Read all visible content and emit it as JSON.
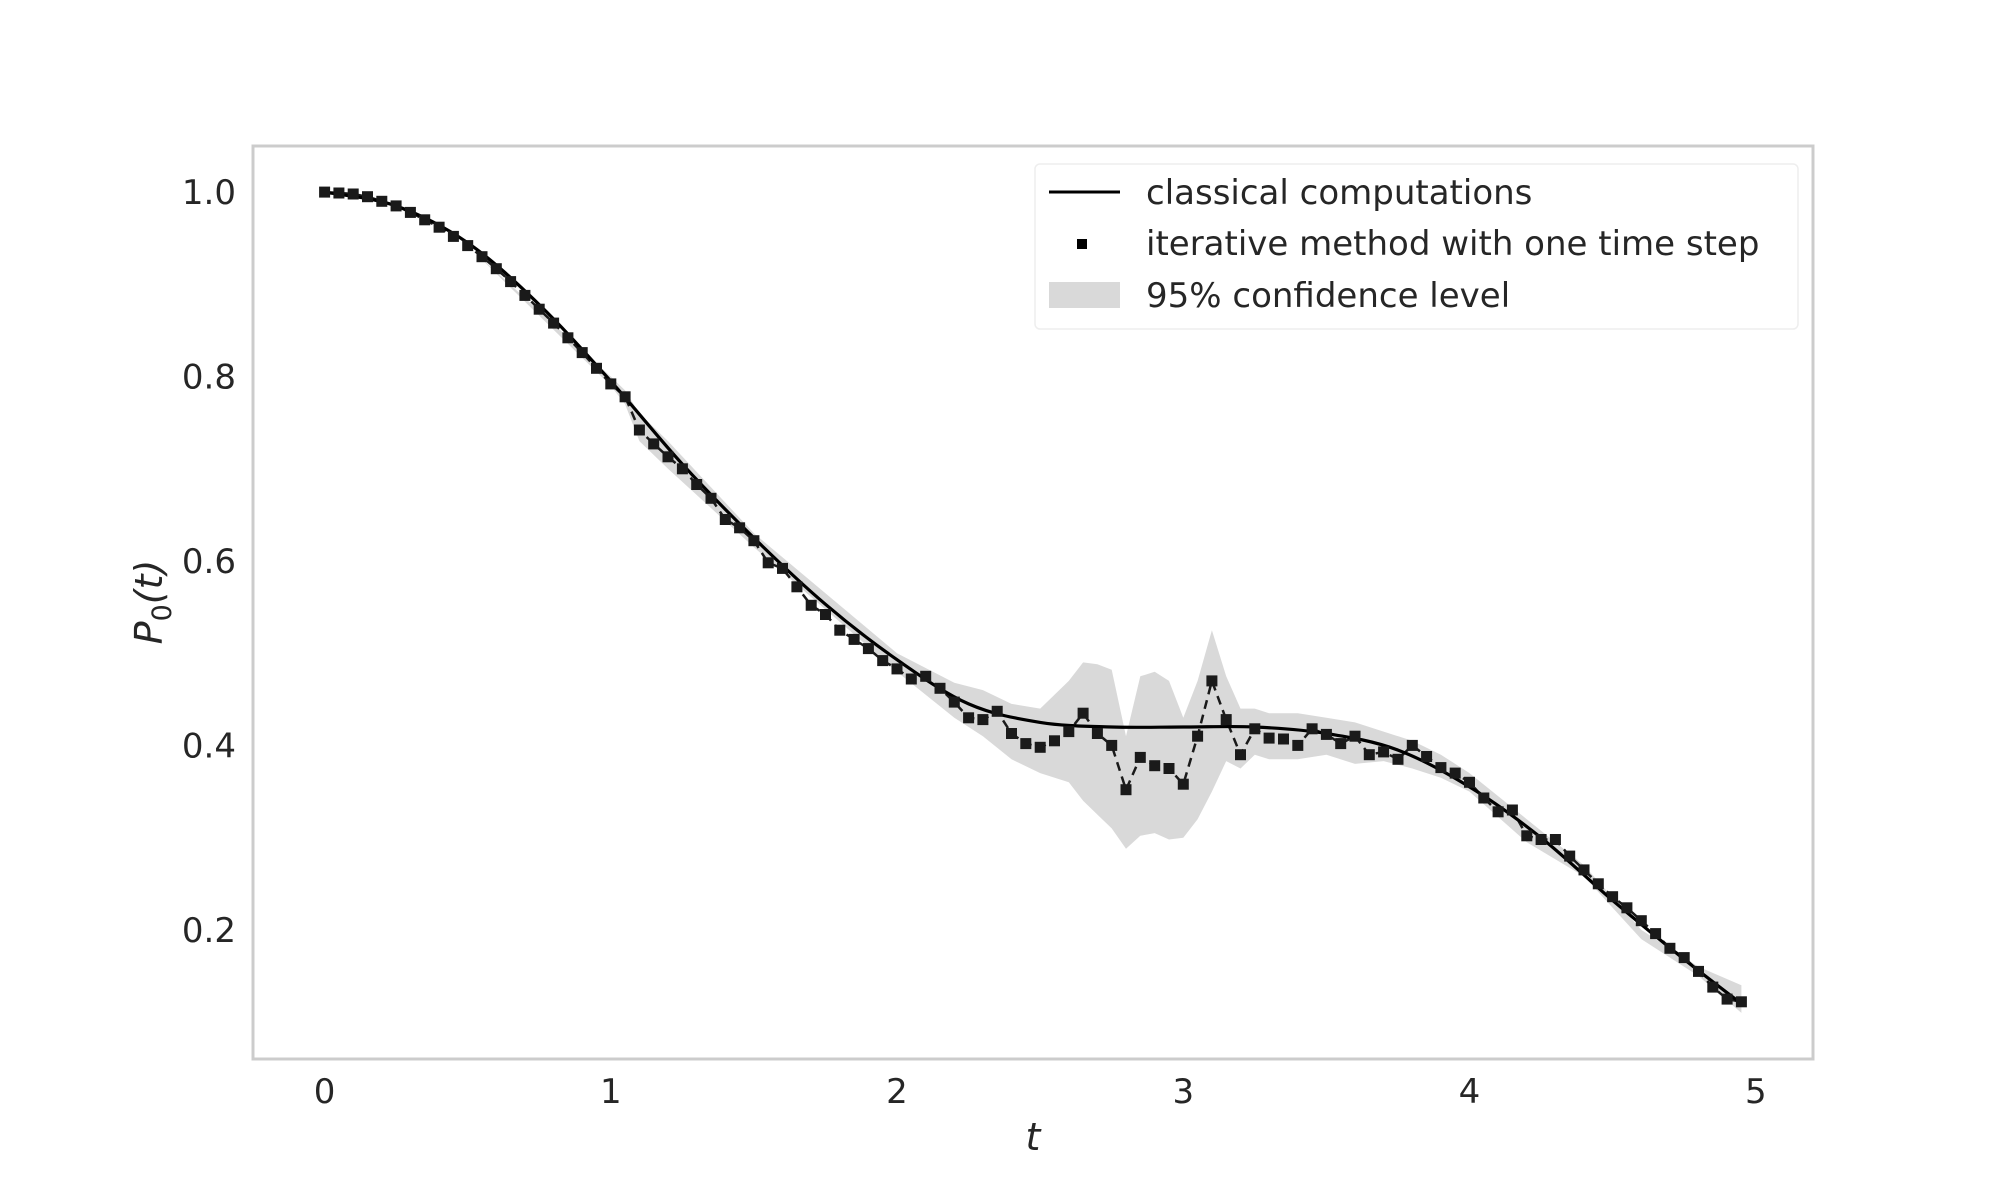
{
  "chart_data": {
    "type": "line",
    "title": "",
    "xlabel": "t",
    "ylabel_main": "P",
    "ylabel_sub": "0",
    "ylabel_tail": "(t)",
    "xlim": [
      -0.25,
      5.2
    ],
    "ylim": [
      0.06,
      1.05
    ],
    "xticks": [
      0,
      1,
      2,
      3,
      4,
      5
    ],
    "xtick_labels": [
      "0",
      "1",
      "2",
      "3",
      "4",
      "5"
    ],
    "yticks": [
      0.2,
      0.4,
      0.6,
      0.8,
      1.0
    ],
    "ytick_labels": [
      "0.2",
      "0.4",
      "0.6",
      "0.8",
      "1.0"
    ],
    "grid": false,
    "legend_position": "top-right",
    "colors": {
      "line": "#000000",
      "marker": "#1a1a1a",
      "band": "#d9d9d9",
      "frame": "#cccccc",
      "text": "#262626"
    },
    "series": [
      {
        "name": "classical computations",
        "kind": "line",
        "x": [
          0,
          0.25,
          0.5,
          0.75,
          1.0,
          1.25,
          1.5,
          1.75,
          2.0,
          2.25,
          2.5,
          2.75,
          3.0,
          3.25,
          3.5,
          3.75,
          4.0,
          4.25,
          4.5,
          4.75,
          4.95
        ],
        "y": [
          1.0,
          0.985,
          0.945,
          0.878,
          0.795,
          0.705,
          0.625,
          0.553,
          0.493,
          0.445,
          0.425,
          0.42,
          0.42,
          0.42,
          0.413,
          0.395,
          0.355,
          0.3,
          0.232,
          0.168,
          0.12
        ]
      },
      {
        "name": "iterative method with one time step",
        "kind": "markers",
        "x": [
          0.0,
          0.05,
          0.1,
          0.15,
          0.2,
          0.25,
          0.3,
          0.35,
          0.4,
          0.45,
          0.5,
          0.55,
          0.6,
          0.65,
          0.7,
          0.75,
          0.8,
          0.85,
          0.9,
          0.95,
          1.0,
          1.05,
          1.1,
          1.15,
          1.2,
          1.25,
          1.3,
          1.35,
          1.4,
          1.45,
          1.5,
          1.55,
          1.6,
          1.65,
          1.7,
          1.75,
          1.8,
          1.85,
          1.9,
          1.95,
          2.0,
          2.05,
          2.1,
          2.15,
          2.2,
          2.25,
          2.3,
          2.35,
          2.4,
          2.45,
          2.5,
          2.55,
          2.6,
          2.65,
          2.7,
          2.75,
          2.8,
          2.85,
          2.9,
          2.95,
          3.0,
          3.05,
          3.1,
          3.15,
          3.2,
          3.25,
          3.3,
          3.35,
          3.4,
          3.45,
          3.5,
          3.55,
          3.6,
          3.65,
          3.7,
          3.75,
          3.8,
          3.85,
          3.9,
          3.95,
          4.0,
          4.05,
          4.1,
          4.15,
          4.2,
          4.25,
          4.3,
          4.35,
          4.4,
          4.45,
          4.5,
          4.55,
          4.6,
          4.65,
          4.7,
          4.75,
          4.8,
          4.85,
          4.9,
          4.95
        ],
        "y": [
          1.0,
          0.999,
          0.998,
          0.995,
          0.99,
          0.985,
          0.978,
          0.97,
          0.962,
          0.952,
          0.942,
          0.93,
          0.917,
          0.903,
          0.888,
          0.873,
          0.858,
          0.842,
          0.826,
          0.809,
          0.792,
          0.778,
          0.742,
          0.727,
          0.713,
          0.7,
          0.683,
          0.668,
          0.645,
          0.636,
          0.622,
          0.598,
          0.592,
          0.572,
          0.552,
          0.542,
          0.525,
          0.515,
          0.505,
          0.492,
          0.483,
          0.472,
          0.475,
          0.462,
          0.447,
          0.43,
          0.428,
          0.437,
          0.413,
          0.402,
          0.398,
          0.405,
          0.415,
          0.435,
          0.413,
          0.4,
          0.352,
          0.387,
          0.378,
          0.375,
          0.358,
          0.41,
          0.47,
          0.428,
          0.39,
          0.418,
          0.408,
          0.407,
          0.4,
          0.418,
          0.412,
          0.402,
          0.41,
          0.39,
          0.393,
          0.385,
          0.4,
          0.388,
          0.376,
          0.37,
          0.36,
          0.343,
          0.328,
          0.33,
          0.302,
          0.298,
          0.298,
          0.28,
          0.265,
          0.25,
          0.236,
          0.224,
          0.21,
          0.196,
          0.18,
          0.17,
          0.155,
          0.138,
          0.125,
          0.122
        ]
      },
      {
        "name": "95% confidence level",
        "kind": "band",
        "x": [
          0.0,
          0.5,
          1.0,
          1.05,
          1.1,
          1.2,
          1.5,
          2.0,
          2.2,
          2.3,
          2.4,
          2.5,
          2.6,
          2.65,
          2.7,
          2.75,
          2.8,
          2.85,
          2.9,
          2.95,
          3.0,
          3.05,
          3.1,
          3.15,
          3.2,
          3.25,
          3.3,
          3.4,
          3.5,
          3.6,
          3.7,
          3.8,
          3.9,
          4.0,
          4.2,
          4.4,
          4.6,
          4.8,
          4.95
        ],
        "lower": [
          1.0,
          0.942,
          0.79,
          0.77,
          0.73,
          0.7,
          0.615,
          0.48,
          0.43,
          0.41,
          0.385,
          0.37,
          0.36,
          0.34,
          0.325,
          0.31,
          0.288,
          0.302,
          0.305,
          0.298,
          0.3,
          0.32,
          0.35,
          0.383,
          0.375,
          0.39,
          0.385,
          0.385,
          0.39,
          0.38,
          0.383,
          0.375,
          0.365,
          0.35,
          0.295,
          0.258,
          0.19,
          0.15,
          0.11
        ],
        "upper": [
          1.0,
          0.942,
          0.8,
          0.785,
          0.76,
          0.73,
          0.63,
          0.5,
          0.468,
          0.46,
          0.445,
          0.44,
          0.47,
          0.49,
          0.488,
          0.482,
          0.41,
          0.475,
          0.48,
          0.47,
          0.43,
          0.47,
          0.525,
          0.475,
          0.44,
          0.44,
          0.435,
          0.435,
          0.43,
          0.425,
          0.415,
          0.405,
          0.39,
          0.37,
          0.32,
          0.27,
          0.2,
          0.16,
          0.14
        ]
      }
    ]
  }
}
